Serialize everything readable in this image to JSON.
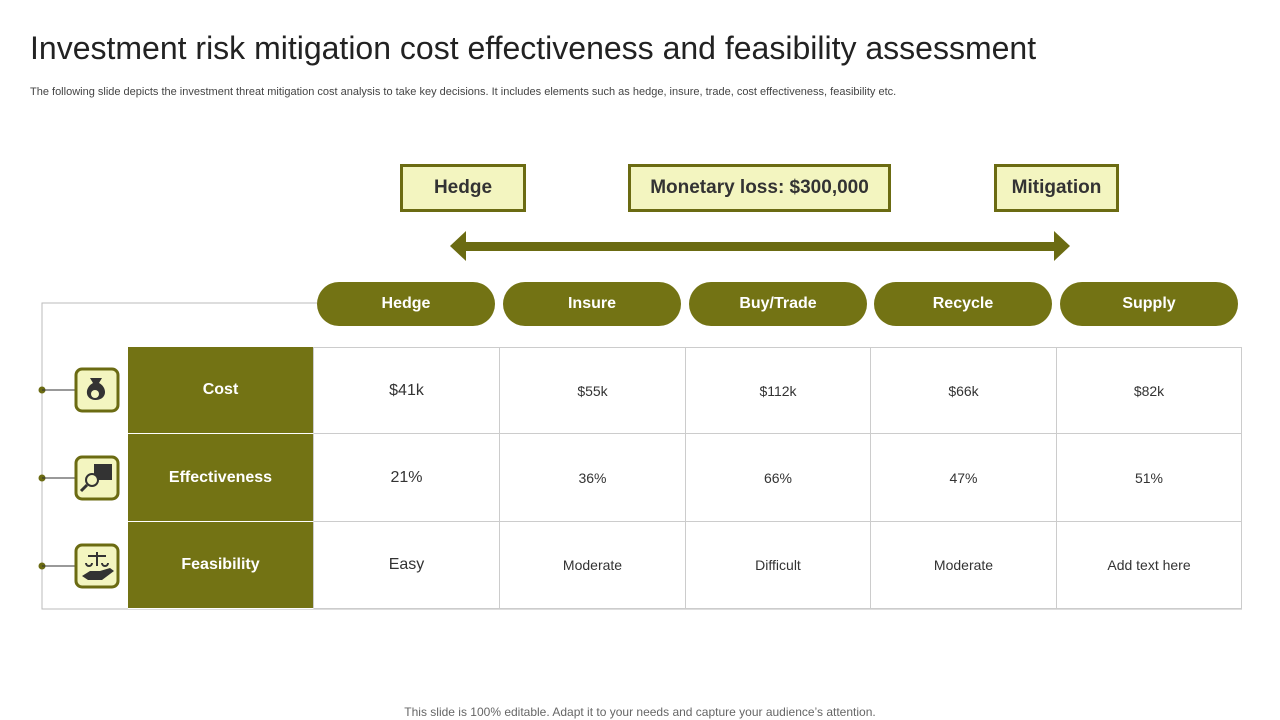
{
  "title": "Investment risk mitigation cost effectiveness and feasibility assessment",
  "subtitle": "The following slide depicts the investment threat mitigation cost analysis to take key decisions. It includes elements such as hedge, insure, trade, cost effectiveness, feasibility etc.",
  "top_boxes": [
    "Hedge",
    "Monetary loss: $300,000",
    "Mitigation"
  ],
  "table": {
    "columns": [
      "Hedge",
      "Insure",
      "Buy/Trade",
      "Recycle",
      "Supply"
    ],
    "rows": [
      {
        "label": "Cost",
        "cells": [
          "$41k",
          "$55k",
          "$112k",
          "$66k",
          "$82k"
        ]
      },
      {
        "label": "Effectiveness",
        "cells": [
          "21%",
          "36%",
          "66%",
          "47%",
          "51%"
        ]
      },
      {
        "label": "Feasibility",
        "cells": [
          "Easy",
          "Moderate",
          "Difficult",
          "Moderate",
          "Add text here"
        ]
      }
    ]
  },
  "footer": "This slide is 100% editable. Adapt it to your needs and capture your audience’s attention."
}
